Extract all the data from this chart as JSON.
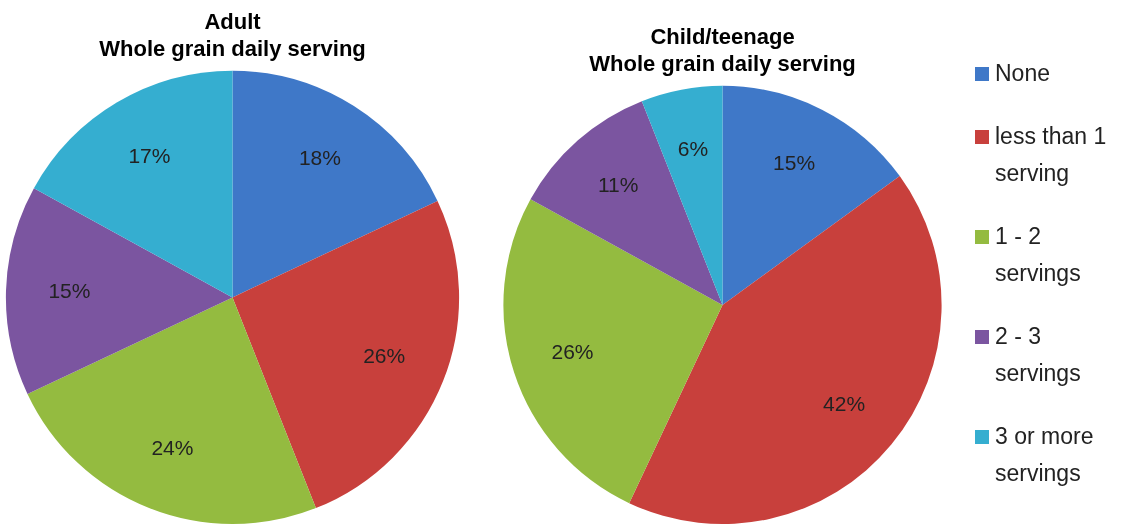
{
  "chart_data": {
    "type": "pie",
    "categories": [
      "None",
      "less than 1 serving",
      "1 - 2 servings",
      "2 - 3 servings",
      "3 or more servings"
    ],
    "colors": [
      "#3f78c8",
      "#c8403c",
      "#94bb40",
      "#7b55a0",
      "#35aed0"
    ],
    "legend": "right",
    "series": [
      {
        "name": "Adult\nWhole grain daily serving",
        "values": [
          18,
          26,
          24,
          15,
          17
        ],
        "value_labels": [
          "18%",
          "26%",
          "24%",
          "15%",
          "17%"
        ]
      },
      {
        "name": "Child/teenage\nWhole grain daily serving",
        "values": [
          15,
          42,
          26,
          11,
          6
        ],
        "value_labels": [
          "15%",
          "42%",
          "26%",
          "11%",
          "6%"
        ]
      }
    ]
  }
}
